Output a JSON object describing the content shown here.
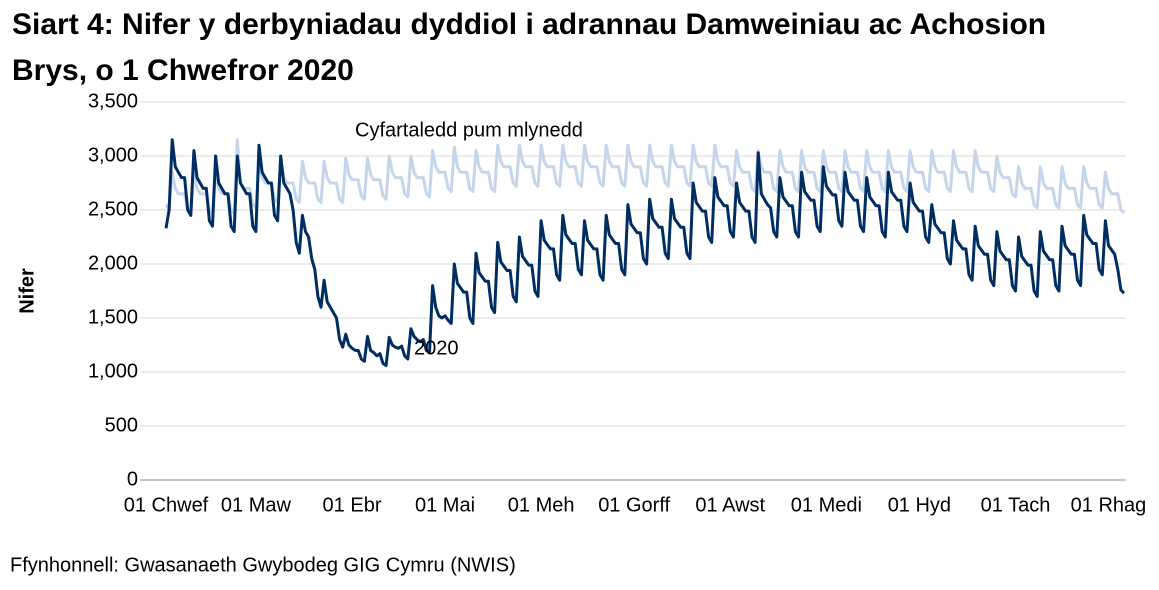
{
  "chart_data": {
    "type": "line",
    "title": "Siart 4: Nifer y derbyniadau dyddiol i adrannau Damweiniau ac Achosion Brys, o 1 Chwefror 2020",
    "y_label": "Nifer",
    "source": "Ffynhonnell: Gwasanaeth Gwybodeg GIG Cymru (NWIS)",
    "categories": [
      "01 Chwef",
      null,
      null,
      null,
      null,
      null,
      null,
      null,
      null,
      null,
      null,
      null,
      null,
      null,
      null,
      null,
      null,
      null,
      null,
      null,
      null,
      null,
      null,
      null,
      null,
      null,
      null,
      null,
      null,
      "01 Maw",
      null,
      null,
      null,
      null,
      null,
      null,
      null,
      null,
      null,
      null,
      null,
      null,
      null,
      null,
      null,
      null,
      null,
      null,
      null,
      null,
      null,
      null,
      null,
      null,
      null,
      null,
      null,
      null,
      null,
      null,
      "01 Ebr",
      null,
      null,
      null,
      null,
      null,
      null,
      null,
      null,
      null,
      null,
      null,
      null,
      null,
      null,
      null,
      null,
      null,
      null,
      null,
      null,
      null,
      null,
      null,
      null,
      null,
      null,
      null,
      null,
      null,
      "01 Mai",
      null,
      null,
      null,
      null,
      null,
      null,
      null,
      null,
      null,
      null,
      null,
      null,
      null,
      null,
      null,
      null,
      null,
      null,
      null,
      null,
      null,
      null,
      null,
      null,
      null,
      null,
      null,
      null,
      null,
      null,
      "01 Meh",
      null,
      null,
      null,
      null,
      null,
      null,
      null,
      null,
      null,
      null,
      null,
      null,
      null,
      null,
      null,
      null,
      null,
      null,
      null,
      null,
      null,
      null,
      null,
      null,
      null,
      null,
      null,
      null,
      null,
      "01 Gorff",
      null,
      null,
      null,
      null,
      null,
      null,
      null,
      null,
      null,
      null,
      null,
      null,
      null,
      null,
      null,
      null,
      null,
      null,
      null,
      null,
      null,
      null,
      null,
      null,
      null,
      null,
      null,
      null,
      null,
      null,
      "01 Awst",
      null,
      null,
      null,
      null,
      null,
      null,
      null,
      null,
      null,
      null,
      null,
      null,
      null,
      null,
      null,
      null,
      null,
      null,
      null,
      null,
      null,
      null,
      null,
      null,
      null,
      null,
      null,
      null,
      null,
      null,
      "01 Medi",
      null,
      null,
      null,
      null,
      null,
      null,
      null,
      null,
      null,
      null,
      null,
      null,
      null,
      null,
      null,
      null,
      null,
      null,
      null,
      null,
      null,
      null,
      null,
      null,
      null,
      null,
      null,
      null,
      null,
      "01 Hyd",
      null,
      null,
      null,
      null,
      null,
      null,
      null,
      null,
      null,
      null,
      null,
      null,
      null,
      null,
      null,
      null,
      null,
      null,
      null,
      null,
      null,
      null,
      null,
      null,
      null,
      null,
      null,
      null,
      null,
      null,
      "01 Tach",
      null,
      null,
      null,
      null,
      null,
      null,
      null,
      null,
      null,
      null,
      null,
      null,
      null,
      null,
      null,
      null,
      null,
      null,
      null,
      null,
      null,
      null,
      null,
      null,
      null,
      null,
      null,
      null,
      null,
      "01 Rhag",
      null,
      null,
      null,
      null,
      null
    ],
    "series": [
      {
        "name": "Cyfartaledd pum mlynedd",
        "color": "#c5d5ea",
        "values": [
          2550,
          2500,
          2850,
          2700,
          2650,
          2650,
          2650,
          2500,
          2470,
          2850,
          2700,
          2650,
          2650,
          2650,
          2500,
          2470,
          2850,
          2700,
          2650,
          2650,
          2650,
          2500,
          2470,
          3150,
          2750,
          2700,
          2700,
          2700,
          2550,
          2520,
          2950,
          2800,
          2750,
          2750,
          2750,
          2600,
          2570,
          2950,
          2800,
          2750,
          2750,
          2750,
          2600,
          2570,
          2950,
          2800,
          2750,
          2750,
          2750,
          2600,
          2570,
          2950,
          2800,
          2750,
          2750,
          2750,
          2600,
          2570,
          2980,
          2830,
          2780,
          2780,
          2780,
          2630,
          2600,
          2980,
          2830,
          2780,
          2780,
          2780,
          2630,
          2600,
          3000,
          2850,
          2800,
          2800,
          2800,
          2650,
          2620,
          3000,
          2850,
          2800,
          2800,
          2800,
          2650,
          2620,
          3050,
          2900,
          2850,
          2850,
          2850,
          2700,
          2670,
          3080,
          2900,
          2850,
          2850,
          2850,
          2700,
          2670,
          3050,
          2900,
          2850,
          2850,
          2850,
          2700,
          2670,
          3100,
          2950,
          2900,
          2900,
          2900,
          2750,
          2720,
          3100,
          2950,
          2900,
          2900,
          2900,
          2750,
          2720,
          3100,
          2950,
          2900,
          2900,
          2900,
          2750,
          2720,
          3100,
          2950,
          2900,
          2900,
          2900,
          2750,
          2720,
          3100,
          2950,
          2900,
          2900,
          2900,
          2750,
          2720,
          3100,
          2950,
          2900,
          2900,
          2900,
          2750,
          2720,
          3100,
          2950,
          2900,
          2900,
          2900,
          2750,
          2720,
          3100,
          2950,
          2900,
          2900,
          2900,
          2750,
          2720,
          3100,
          2950,
          2900,
          2900,
          2900,
          2750,
          2720,
          3100,
          2950,
          2900,
          2900,
          2900,
          2750,
          2720,
          3100,
          2950,
          2900,
          2900,
          2900,
          2750,
          2720,
          3050,
          2900,
          2850,
          2850,
          2850,
          2700,
          2670,
          3050,
          2900,
          2850,
          2850,
          2850,
          2700,
          2670,
          3050,
          2900,
          2850,
          2850,
          2850,
          2700,
          2670,
          3050,
          2900,
          2850,
          2850,
          2850,
          2700,
          2670,
          3050,
          2900,
          2850,
          2850,
          2850,
          2700,
          2670,
          3050,
          2900,
          2850,
          2850,
          2850,
          2700,
          2670,
          3050,
          2900,
          2850,
          2850,
          2850,
          2700,
          2670,
          3050,
          2900,
          2850,
          2850,
          2850,
          2700,
          2670,
          3050,
          2900,
          2850,
          2850,
          2850,
          2700,
          2670,
          3050,
          2900,
          2850,
          2850,
          2850,
          2700,
          2670,
          3050,
          2900,
          2850,
          2850,
          2850,
          2700,
          2670,
          3050,
          2900,
          2850,
          2850,
          2850,
          2700,
          2670,
          3000,
          2850,
          2800,
          2800,
          2800,
          2650,
          2620,
          2900,
          2750,
          2700,
          2700,
          2700,
          2550,
          2520,
          2900,
          2750,
          2700,
          2700,
          2700,
          2550,
          2520,
          2900,
          2750,
          2700,
          2700,
          2700,
          2550,
          2520,
          2900,
          2750,
          2700,
          2700,
          2700,
          2550,
          2520,
          2850,
          2700,
          2650,
          2650,
          2650,
          2500,
          2470
        ]
      },
      {
        "name": "2020",
        "color": "#002d62",
        "values": [
          2330,
          2500,
          3150,
          2900,
          2850,
          2800,
          2800,
          2500,
          2450,
          3050,
          2800,
          2750,
          2700,
          2700,
          2400,
          2350,
          3000,
          2750,
          2700,
          2650,
          2650,
          2350,
          2300,
          3000,
          2750,
          2700,
          2650,
          2650,
          2350,
          2300,
          3100,
          2850,
          2800,
          2750,
          2750,
          2450,
          2400,
          3000,
          2750,
          2700,
          2650,
          2500,
          2200,
          2100,
          2450,
          2300,
          2250,
          2050,
          1950,
          1700,
          1600,
          1850,
          1650,
          1600,
          1550,
          1500,
          1300,
          1230,
          1350,
          1250,
          1220,
          1200,
          1200,
          1120,
          1100,
          1330,
          1200,
          1180,
          1150,
          1170,
          1080,
          1060,
          1320,
          1250,
          1230,
          1220,
          1240,
          1150,
          1120,
          1400,
          1330,
          1300,
          1280,
          1300,
          1200,
          1180,
          1800,
          1600,
          1520,
          1500,
          1520,
          1480,
          1450,
          2000,
          1820,
          1780,
          1740,
          1740,
          1500,
          1450,
          2100,
          1920,
          1880,
          1840,
          1840,
          1600,
          1550,
          2200,
          2020,
          1980,
          1940,
          1940,
          1700,
          1650,
          2250,
          2070,
          2030,
          1990,
          1990,
          1750,
          1700,
          2400,
          2220,
          2180,
          2140,
          2140,
          1900,
          1850,
          2450,
          2270,
          2230,
          2190,
          2190,
          1950,
          1900,
          2400,
          2220,
          2180,
          2140,
          2140,
          1900,
          1850,
          2450,
          2270,
          2230,
          2190,
          2190,
          1950,
          1900,
          2550,
          2370,
          2330,
          2290,
          2290,
          2050,
          2000,
          2600,
          2420,
          2380,
          2340,
          2340,
          2100,
          2050,
          2600,
          2420,
          2380,
          2340,
          2340,
          2100,
          2050,
          2750,
          2570,
          2530,
          2490,
          2490,
          2250,
          2200,
          2800,
          2620,
          2580,
          2540,
          2540,
          2300,
          2250,
          2750,
          2570,
          2530,
          2490,
          2490,
          2250,
          2200,
          3030,
          2650,
          2600,
          2550,
          2520,
          2300,
          2250,
          2800,
          2620,
          2580,
          2540,
          2540,
          2300,
          2250,
          2850,
          2670,
          2630,
          2590,
          2590,
          2350,
          2300,
          2900,
          2720,
          2680,
          2640,
          2640,
          2400,
          2350,
          2850,
          2670,
          2630,
          2590,
          2590,
          2350,
          2300,
          2800,
          2620,
          2580,
          2540,
          2540,
          2300,
          2250,
          2850,
          2670,
          2630,
          2590,
          2590,
          2350,
          2300,
          2750,
          2570,
          2530,
          2490,
          2490,
          2250,
          2200,
          2550,
          2370,
          2330,
          2290,
          2290,
          2050,
          2000,
          2400,
          2220,
          2180,
          2140,
          2140,
          1900,
          1850,
          2350,
          2170,
          2130,
          2090,
          2090,
          1850,
          1800,
          2300,
          2120,
          2080,
          2040,
          2040,
          1800,
          1750,
          2250,
          2070,
          2030,
          1990,
          1990,
          1750,
          1700,
          2300,
          2120,
          2080,
          2040,
          2040,
          1800,
          1750,
          2350,
          2170,
          2130,
          2090,
          2090,
          1850,
          1800,
          2450,
          2270,
          2230,
          2190,
          2190,
          1950,
          1900,
          2400,
          2170,
          2130,
          2090,
          1950,
          1760,
          1730
        ]
      }
    ],
    "ylim": [
      0,
      3500
    ],
    "yticks": [
      0,
      500,
      {
        "value": 1000,
        "label": "1,000"
      },
      {
        "value": 1500,
        "label": "1,500"
      },
      {
        "value": 2000,
        "label": "2,000"
      },
      {
        "value": 2500,
        "label": "2,500"
      },
      {
        "value": 3000,
        "label": "3,000"
      },
      {
        "value": 3500,
        "label": "3,500"
      }
    ],
    "grid": true
  }
}
